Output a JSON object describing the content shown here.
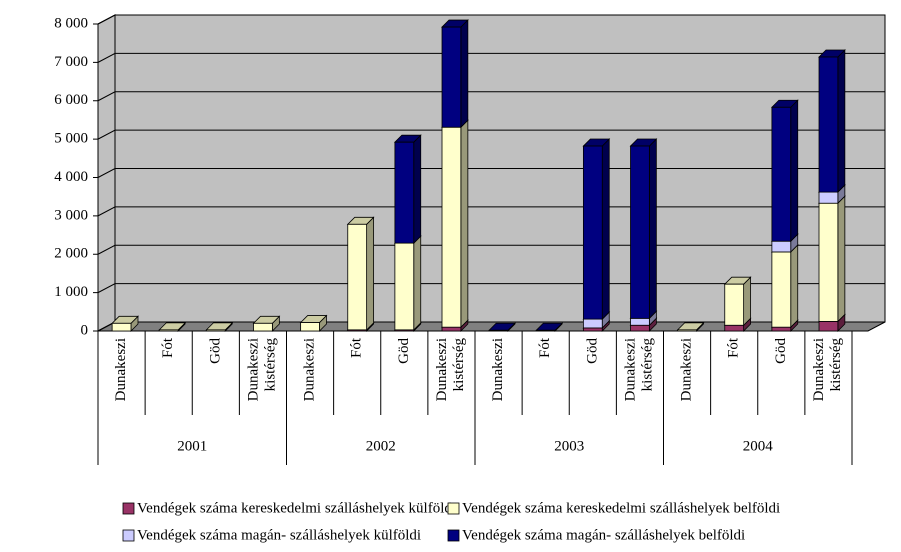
{
  "chart_data": {
    "type": "bar3d_stacked",
    "categories": [
      "Dunakeszi",
      "Fót",
      "Göd",
      "Dunakeszi kistérség",
      "Dunakeszi",
      "Fót",
      "Göd",
      "Dunakeszi kistérség",
      "Dunakeszi",
      "Fót",
      "Göd",
      "Dunakeszi kistérség",
      "Dunakeszi",
      "Fót",
      "Göd",
      "Dunakeszi kistérség"
    ],
    "category_groups": [
      "2001",
      "2002",
      "2003",
      "2004"
    ],
    "series": [
      {
        "name": "Vendégek száma kereskedelmi szálláshelyek külföldi",
        "color": "#993366",
        "values": [
          0,
          0,
          0,
          0,
          0,
          30,
          30,
          100,
          0,
          0,
          80,
          150,
          0,
          150,
          100,
          250
        ]
      },
      {
        "name": "Vendégek száma kereskedelmi szálláshelyek belföldi",
        "color": "#ffffcc",
        "values": [
          200,
          30,
          30,
          200,
          220,
          2750,
          2260,
          5210,
          0,
          0,
          0,
          0,
          30,
          1070,
          1960,
          3080
        ]
      },
      {
        "name": "Vendégek száma magán- szálláshelyek külföldi",
        "color": "#ccccff",
        "values": [
          0,
          0,
          0,
          0,
          0,
          0,
          0,
          0,
          0,
          0,
          230,
          180,
          0,
          0,
          280,
          290
        ]
      },
      {
        "name": "Vendégek száma magán- szálláshelyek belföldi",
        "color": "#000080",
        "values": [
          0,
          0,
          0,
          0,
          0,
          0,
          2630,
          2610,
          20,
          20,
          4510,
          4490,
          0,
          0,
          3490,
          3520
        ]
      }
    ],
    "ylim": [
      0,
      8000
    ],
    "yticks": [
      0,
      {
        "value": 1000,
        "label": "1 000"
      },
      {
        "value": 2000,
        "label": "2 000"
      },
      {
        "value": 3000,
        "label": "3 000"
      },
      {
        "value": 4000,
        "label": "4 000"
      },
      {
        "value": 5000,
        "label": "5 000"
      },
      {
        "value": 6000,
        "label": "6 000"
      },
      {
        "value": 7000,
        "label": "7 000"
      },
      {
        "value": 8000,
        "label": "8 000"
      }
    ],
    "grid": true
  }
}
